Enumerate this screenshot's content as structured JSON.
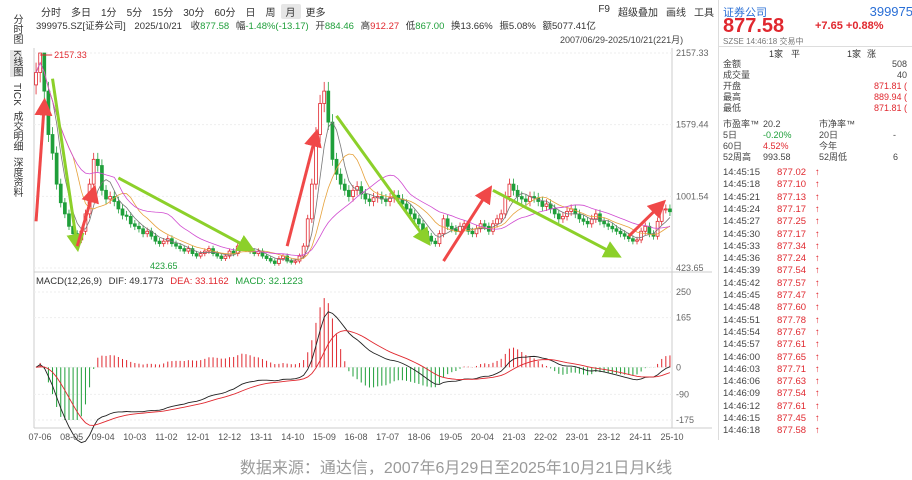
{
  "toolbar": {
    "periods": [
      "分时",
      "多日",
      "1分",
      "5分",
      "15分",
      "30分",
      "60分",
      "日",
      "周",
      "月",
      "更多"
    ],
    "active_period": "月",
    "right_items": [
      "F9",
      "超级叠加",
      "画线",
      "工具"
    ]
  },
  "left_tabs": [
    "分时图",
    "K线图",
    "TICK",
    "成交明细",
    "深度资料"
  ],
  "info": {
    "symbol": "399975.SZ[证券公司]",
    "date": "2025/10/21",
    "close_label": "收",
    "close": "877.58",
    "amp_label": "幅",
    "chg": "-1.48%(-13.17)",
    "open_label": "开",
    "open": "884.46",
    "high_label": "高",
    "high": "912.27",
    "low_label": "低",
    "low": "867.00",
    "turnover_label": "换",
    "turnover": "13.66%",
    "swing_label": "振",
    "swing": "5.08%",
    "amount_label": "额",
    "amount": "5077.41亿"
  },
  "range_text": "2007/06/29-2025/10/21(221月)",
  "annotations": {
    "max_label": "2157.33",
    "min_label": "423.65"
  },
  "macd_legend": {
    "name": "MACD(12,26,9)",
    "dif": "DIF: 49.1773",
    "dea": "DEA: 33.1162",
    "macd": "MACD: 32.1223"
  },
  "caption": "数据来源：通达信，2007年6月29日至2025年10月21日月K线",
  "colors": {
    "up": "#e0282f",
    "down": "#1f9f3a",
    "arrow_up": "#f04848",
    "arrow_down": "#8cd02a"
  },
  "chart_data": {
    "type": "candlestick",
    "price_axis": {
      "ticks": [
        2157.33,
        1579.44,
        1001.54,
        423.65
      ],
      "ylim": [
        423.65,
        2157.33
      ]
    },
    "macd_axis": {
      "ticks": [
        250,
        165,
        0,
        -90,
        -175
      ],
      "ylim": [
        -175,
        250
      ]
    },
    "x_ticks": [
      "07-06",
      "08-05",
      "09-04",
      "10-03",
      "11-02",
      "12-01",
      "12-12",
      "13-11",
      "14-10",
      "15-09",
      "16-08",
      "17-07",
      "18-06",
      "19-05",
      "20-04",
      "21-03",
      "22-02",
      "23-01",
      "23-12",
      "24-11",
      "25-10"
    ],
    "closes": [
      2000,
      2157,
      1850,
      1500,
      1350,
      1100,
      950,
      860,
      760,
      700,
      650,
      720,
      860,
      1100,
      1300,
      1250,
      1050,
      980,
      1000,
      960,
      900,
      850,
      840,
      780,
      760,
      740,
      700,
      720,
      680,
      640,
      620,
      640,
      660,
      620,
      600,
      580,
      560,
      580,
      540,
      520,
      540,
      560,
      580,
      540,
      520,
      500,
      520,
      560,
      540,
      600,
      620,
      580,
      560,
      540,
      560,
      520,
      500,
      480,
      460,
      500,
      520,
      480,
      470,
      480,
      520,
      600,
      820,
      1100,
      1500,
      1750,
      1850,
      1600,
      1300,
      1180,
      1100,
      1050,
      1000,
      1050,
      1080,
      1020,
      980,
      960,
      990,
      1000,
      980,
      960,
      990,
      1010,
      980,
      940,
      900,
      860,
      820,
      780,
      720,
      680,
      640,
      620,
      700,
      820,
      760,
      740,
      720,
      760,
      780,
      720,
      700,
      740,
      780,
      760,
      720,
      780,
      820,
      860,
      1000,
      1100,
      1050,
      1000,
      980,
      960,
      1000,
      990,
      960,
      920,
      940,
      900,
      860,
      820,
      840,
      880,
      900,
      860,
      820,
      800,
      780,
      820,
      860,
      800,
      780,
      760,
      740,
      720,
      700,
      680,
      660,
      640,
      650,
      720,
      760,
      700,
      680,
      800,
      900,
      900,
      877.58
    ],
    "arrows": [
      {
        "from": [
          0,
          800
        ],
        "to": [
          2,
          1750
        ],
        "dir": "up"
      },
      {
        "from": [
          4,
          1950
        ],
        "to": [
          10,
          600
        ],
        "dir": "down"
      },
      {
        "from": [
          10,
          600
        ],
        "to": [
          14,
          1050
        ],
        "dir": "up"
      },
      {
        "from": [
          20,
          1150
        ],
        "to": [
          52,
          580
        ],
        "dir": "down"
      },
      {
        "from": [
          61,
          600
        ],
        "to": [
          68,
          1500
        ],
        "dir": "up"
      },
      {
        "from": [
          73,
          1650
        ],
        "to": [
          95,
          640
        ],
        "dir": "down"
      },
      {
        "from": [
          99,
          480
        ],
        "to": [
          110,
          1050
        ],
        "dir": "up"
      },
      {
        "from": [
          111,
          1050
        ],
        "to": [
          141,
          530
        ],
        "dir": "down"
      },
      {
        "from": [
          144,
          680
        ],
        "to": [
          152,
          940
        ],
        "dir": "up"
      }
    ]
  },
  "right_panel": {
    "title": "证券公司",
    "code": "399975",
    "price": "877.58",
    "change": "+7.65  +0.88%",
    "sub": "SZSE 14:46:18 交易中",
    "header_row": [
      "1家",
      "平",
      "1家",
      "涨"
    ],
    "stats": [
      {
        "label": "金额",
        "value": "508"
      },
      {
        "label": "成交量",
        "value": "40"
      },
      {
        "label": "开盘",
        "value": "871.81 ("
      },
      {
        "label": "最高",
        "value": "889.94 ("
      },
      {
        "label": "最低",
        "value": "871.81 ("
      }
    ],
    "metrics": [
      {
        "a": "市盈率™",
        "b": "20.2",
        "c": "市净率™",
        "d": ""
      },
      {
        "a": "5日",
        "b": "-0.20%",
        "c": "20日",
        "d": "-"
      },
      {
        "a": "60日",
        "b": "4.52%",
        "c": "今年",
        "d": ""
      },
      {
        "a": "52周高",
        "b": "993.58",
        "c": "52周低",
        "d": "6"
      }
    ],
    "ticks": [
      [
        "14:45:15",
        "877.02"
      ],
      [
        "14:45:18",
        "877.10"
      ],
      [
        "14:45:21",
        "877.13"
      ],
      [
        "14:45:24",
        "877.17"
      ],
      [
        "14:45:27",
        "877.25"
      ],
      [
        "14:45:30",
        "877.17"
      ],
      [
        "14:45:33",
        "877.34"
      ],
      [
        "14:45:36",
        "877.24"
      ],
      [
        "14:45:39",
        "877.54"
      ],
      [
        "14:45:42",
        "877.57"
      ],
      [
        "14:45:45",
        "877.47"
      ],
      [
        "14:45:48",
        "877.60"
      ],
      [
        "14:45:51",
        "877.78"
      ],
      [
        "14:45:54",
        "877.67"
      ],
      [
        "14:45:57",
        "877.61"
      ],
      [
        "14:46:00",
        "877.65"
      ],
      [
        "14:46:03",
        "877.71"
      ],
      [
        "14:46:06",
        "877.63"
      ],
      [
        "14:46:09",
        "877.54"
      ],
      [
        "14:46:12",
        "877.61"
      ],
      [
        "14:46:15",
        "877.45"
      ],
      [
        "14:46:18",
        "877.58"
      ]
    ]
  }
}
